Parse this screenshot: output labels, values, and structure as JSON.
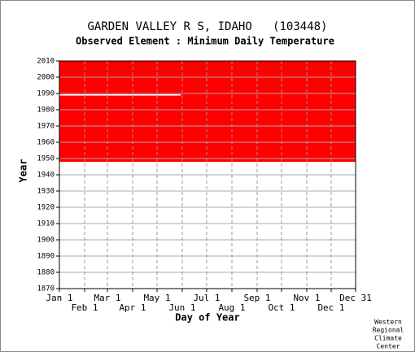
{
  "chart_data": {
    "type": "coverage",
    "title": "GARDEN VALLEY R S, IDAHO   (103448)",
    "subtitle": "Observed Element : Minimum Daily Temperature",
    "x_label": "Day of Year",
    "y_label": "Year",
    "color": "#ff0000",
    "coverage": {
      "start": 1948,
      "end": 2010
    },
    "gaps": [
      {
        "year": 1989,
        "from": 1,
        "to": 150
      }
    ],
    "xlim": [
      1,
      365
    ],
    "ylim": [
      1870,
      2010
    ],
    "xticks": [
      {
        "value": 1,
        "label": "Jan 1"
      },
      {
        "value": 32,
        "label": "Feb 1"
      },
      {
        "value": 60,
        "label": "Mar 1"
      },
      {
        "value": 91,
        "label": "Apr 1"
      },
      {
        "value": 121,
        "label": "May 1"
      },
      {
        "value": 152,
        "label": "Jun 1"
      },
      {
        "value": 182,
        "label": "Jul 1"
      },
      {
        "value": 213,
        "label": "Aug 1"
      },
      {
        "value": 244,
        "label": "Sep 1"
      },
      {
        "value": 274,
        "label": "Oct 1"
      },
      {
        "value": 305,
        "label": "Nov 1"
      },
      {
        "value": 335,
        "label": "Dec 1"
      },
      {
        "value": 365,
        "label": "Dec 31"
      }
    ],
    "yticks": [
      1870,
      1880,
      1890,
      1900,
      1910,
      1920,
      1930,
      1940,
      1950,
      1960,
      1970,
      1980,
      1990,
      2000,
      2010
    ],
    "grid": true,
    "credit": [
      "Western",
      "Regional",
      "Climate",
      "Center"
    ]
  }
}
